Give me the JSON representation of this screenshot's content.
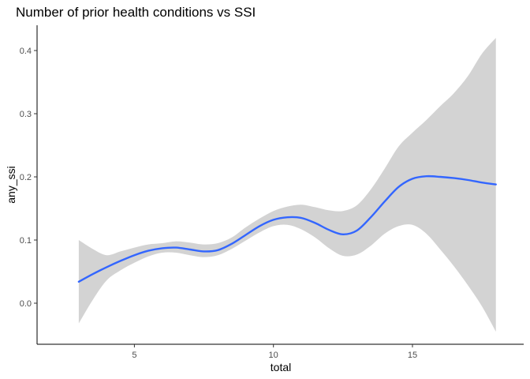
{
  "chart_data": {
    "type": "line",
    "title": "Number of prior health conditions vs SSI",
    "xlabel": "total",
    "ylabel": "any_ssi",
    "xlim": [
      1.5,
      19
    ],
    "ylim": [
      -0.065,
      0.44
    ],
    "x_ticks": [
      5,
      10,
      15
    ],
    "y_ticks": [
      0.0,
      0.1,
      0.2,
      0.3,
      0.4
    ],
    "x_tick_labels": [
      "5",
      "10",
      "15"
    ],
    "y_tick_labels": [
      "0.0",
      "0.1",
      "0.2",
      "0.3",
      "0.4"
    ],
    "grid": false,
    "legend": "none",
    "series": [
      {
        "smooth": true,
        "confidence_band": true,
        "color": "#3366ff",
        "band_color": "#d3d3d3",
        "x": [
          3,
          3.5,
          4,
          4.5,
          5,
          5.5,
          6,
          6.5,
          7,
          7.5,
          8,
          8.5,
          9,
          9.5,
          10,
          10.5,
          11,
          11.5,
          12,
          12.5,
          13,
          13.5,
          14,
          14.5,
          15,
          15.5,
          16,
          16.5,
          17,
          17.5,
          18
        ],
        "y": [
          0.034,
          0.046,
          0.057,
          0.067,
          0.076,
          0.083,
          0.087,
          0.088,
          0.085,
          0.082,
          0.084,
          0.094,
          0.108,
          0.122,
          0.132,
          0.136,
          0.135,
          0.127,
          0.116,
          0.109,
          0.115,
          0.136,
          0.161,
          0.184,
          0.197,
          0.201,
          0.2,
          0.198,
          0.195,
          0.191,
          0.188
        ],
        "lower": [
          -0.032,
          0.005,
          0.036,
          0.052,
          0.064,
          0.074,
          0.08,
          0.08,
          0.076,
          0.073,
          0.076,
          0.086,
          0.099,
          0.112,
          0.122,
          0.124,
          0.117,
          0.104,
          0.087,
          0.075,
          0.077,
          0.091,
          0.11,
          0.122,
          0.124,
          0.11,
          0.085,
          0.058,
          0.028,
          -0.005,
          -0.045
        ],
        "upper": [
          0.1,
          0.086,
          0.076,
          0.082,
          0.088,
          0.093,
          0.095,
          0.098,
          0.096,
          0.093,
          0.095,
          0.104,
          0.12,
          0.134,
          0.146,
          0.153,
          0.156,
          0.152,
          0.147,
          0.146,
          0.155,
          0.18,
          0.213,
          0.248,
          0.27,
          0.29,
          0.312,
          0.333,
          0.36,
          0.395,
          0.42
        ]
      }
    ]
  }
}
